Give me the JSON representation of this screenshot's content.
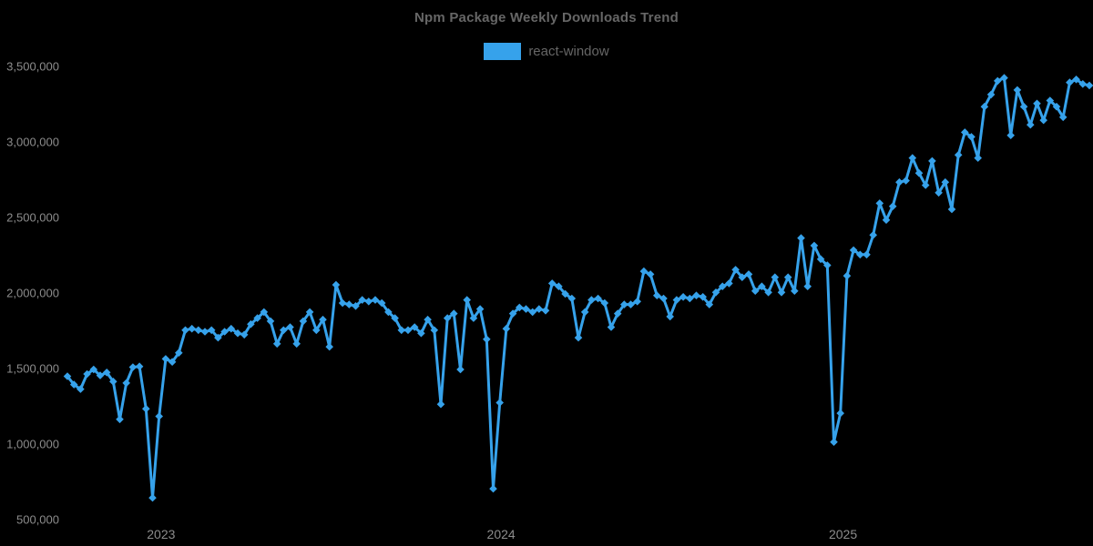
{
  "title": "Npm Package Weekly Downloads Trend",
  "legend": [
    {
      "label": "react-window",
      "color": "#36a2eb"
    }
  ],
  "colors": {
    "background": "#000000",
    "series": "#36a2eb",
    "title_text": "#666666",
    "axis_text": "#8c8c8c"
  },
  "chart_data": {
    "type": "line",
    "title": "Npm Package Weekly Downloads Trend",
    "xlabel": "",
    "ylabel": "",
    "x_unit": "week",
    "marker": "diamond",
    "grid": false,
    "legend_position": "top",
    "ylim": [
      500000,
      3500000
    ],
    "y_ticks": [
      500000,
      1000000,
      1500000,
      2000000,
      2500000,
      3000000,
      3500000
    ],
    "y_tick_labels": [
      "500,000",
      "1,000,000",
      "1,500,000",
      "2,000,000",
      "2,500,000",
      "3,000,000",
      "3,500,000"
    ],
    "x_tick_labels": [
      "2023",
      "2024",
      "2025"
    ],
    "x_tick_indices": [
      14.3,
      66.2,
      118.4
    ],
    "series": [
      {
        "name": "react-window",
        "color": "#36a2eb",
        "values": [
          1455000,
          1400000,
          1370000,
          1470000,
          1500000,
          1460000,
          1480000,
          1420000,
          1170000,
          1410000,
          1515000,
          1520000,
          1240000,
          650000,
          1190000,
          1570000,
          1550000,
          1610000,
          1760000,
          1770000,
          1760000,
          1750000,
          1760000,
          1710000,
          1750000,
          1770000,
          1740000,
          1730000,
          1800000,
          1840000,
          1880000,
          1820000,
          1670000,
          1760000,
          1780000,
          1670000,
          1820000,
          1880000,
          1760000,
          1830000,
          1650000,
          2060000,
          1940000,
          1930000,
          1920000,
          1960000,
          1950000,
          1960000,
          1940000,
          1880000,
          1840000,
          1760000,
          1760000,
          1780000,
          1740000,
          1830000,
          1760000,
          1270000,
          1840000,
          1870000,
          1500000,
          1960000,
          1840000,
          1900000,
          1700000,
          710000,
          1280000,
          1770000,
          1870000,
          1910000,
          1900000,
          1880000,
          1900000,
          1890000,
          2070000,
          2050000,
          2000000,
          1970000,
          1710000,
          1880000,
          1960000,
          1970000,
          1940000,
          1780000,
          1870000,
          1930000,
          1930000,
          1950000,
          2150000,
          2130000,
          1990000,
          1970000,
          1850000,
          1960000,
          1980000,
          1970000,
          1990000,
          1980000,
          1930000,
          2010000,
          2050000,
          2070000,
          2160000,
          2110000,
          2130000,
          2020000,
          2050000,
          2010000,
          2110000,
          2010000,
          2110000,
          2020000,
          2370000,
          2050000,
          2320000,
          2230000,
          2190000,
          1020000,
          1210000,
          2120000,
          2290000,
          2260000,
          2260000,
          2390000,
          2600000,
          2490000,
          2580000,
          2740000,
          2750000,
          2900000,
          2800000,
          2720000,
          2880000,
          2670000,
          2740000,
          2560000,
          2920000,
          3070000,
          3040000,
          2900000,
          3240000,
          3320000,
          3410000,
          3430000,
          3050000,
          3350000,
          3240000,
          3120000,
          3260000,
          3150000,
          3280000,
          3240000,
          3170000,
          3400000,
          3420000,
          3390000,
          3380000
        ]
      }
    ]
  }
}
